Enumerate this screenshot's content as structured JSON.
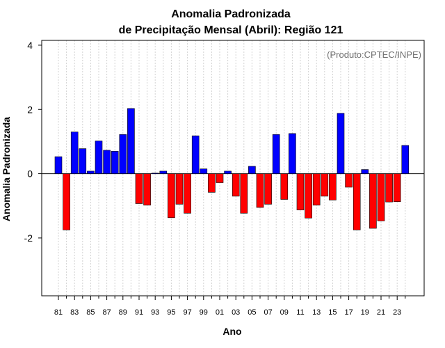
{
  "chart_data": {
    "type": "bar",
    "title_line1": "Anomalia Padronizada",
    "title_line2": "de Precipitação Mensal (Abril): Região 121",
    "credit": "(Produto:CPTEC/INPE)",
    "xlabel": "Ano",
    "ylabel": "Anomalia Padronizada",
    "ylim": [
      -3.8,
      4.15
    ],
    "yticks": [
      -2,
      0,
      2,
      4
    ],
    "ytick_labels": [
      "-2",
      "0",
      "2",
      "4"
    ],
    "categories": [
      "81",
      "82",
      "83",
      "84",
      "85",
      "86",
      "87",
      "88",
      "89",
      "90",
      "91",
      "92",
      "93",
      "94",
      "95",
      "96",
      "97",
      "98",
      "99",
      "00",
      "01",
      "02",
      "03",
      "04",
      "05",
      "06",
      "07",
      "08",
      "09",
      "10",
      "11",
      "12",
      "13",
      "14",
      "15",
      "16",
      "17",
      "18",
      "19",
      "20",
      "21",
      "22",
      "23",
      "24"
    ],
    "xtick_labels": [
      "81",
      "83",
      "85",
      "87",
      "89",
      "91",
      "93",
      "95",
      "97",
      "99",
      "01",
      "03",
      "05",
      "07",
      "09",
      "11",
      "13",
      "15",
      "17",
      "19",
      "21",
      "23"
    ],
    "values": [
      0.53,
      -1.75,
      1.3,
      0.78,
      0.08,
      1.02,
      0.73,
      0.7,
      1.22,
      2.03,
      -0.93,
      -0.98,
      0.02,
      0.08,
      -1.37,
      -0.95,
      -1.23,
      1.18,
      0.15,
      -0.58,
      -0.28,
      0.08,
      -0.7,
      -1.23,
      0.23,
      -1.05,
      -0.95,
      1.22,
      -0.8,
      1.25,
      -1.13,
      -1.38,
      -0.98,
      -0.7,
      -0.82,
      1.88,
      -0.42,
      -1.75,
      0.13,
      -1.7,
      -1.47,
      -0.88,
      -0.87,
      0.88
    ],
    "colors": {
      "positive": "#0000ff",
      "negative": "#ff0000",
      "outline": "#000000",
      "grid": "#d3d3d3"
    },
    "grid": "vertical-dotted"
  }
}
